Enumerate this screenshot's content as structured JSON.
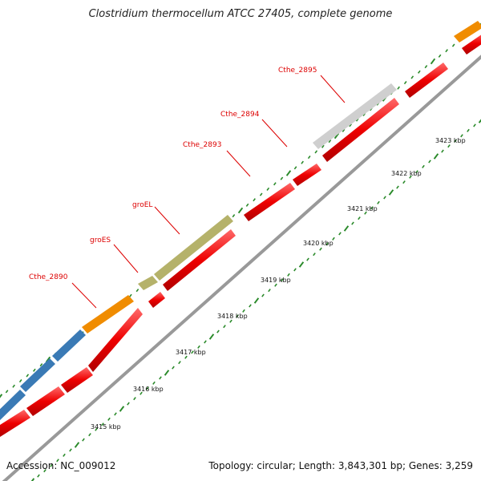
{
  "title": "Clostridium thermocellum ATCC 27405, complete genome",
  "footer": {
    "accession": "Accession: NC_009012",
    "summary": "Topology: circular; Length: 3,843,301 bp; Genes: 3,259"
  },
  "colors": {
    "cds": "#ee0000",
    "blue": "#3a7ab5",
    "orange": "#f08c00",
    "olive": "#b5b26a",
    "gray": "#cfcfcf",
    "label": "#dd0000",
    "tick": "#2a8a2a",
    "backbone": "#888888"
  },
  "ticks": [
    "3415 kbp",
    "3416 kbp",
    "3417 kbp",
    "3418 kbp",
    "3419 kbp",
    "3420 kbp",
    "3421 kbp",
    "3422 kbp",
    "3423 kbp"
  ],
  "gene_labels": [
    "Cthe_2890",
    "groES",
    "groEL",
    "Cthe_2893",
    "Cthe_2894",
    "Cthe_2895"
  ]
}
